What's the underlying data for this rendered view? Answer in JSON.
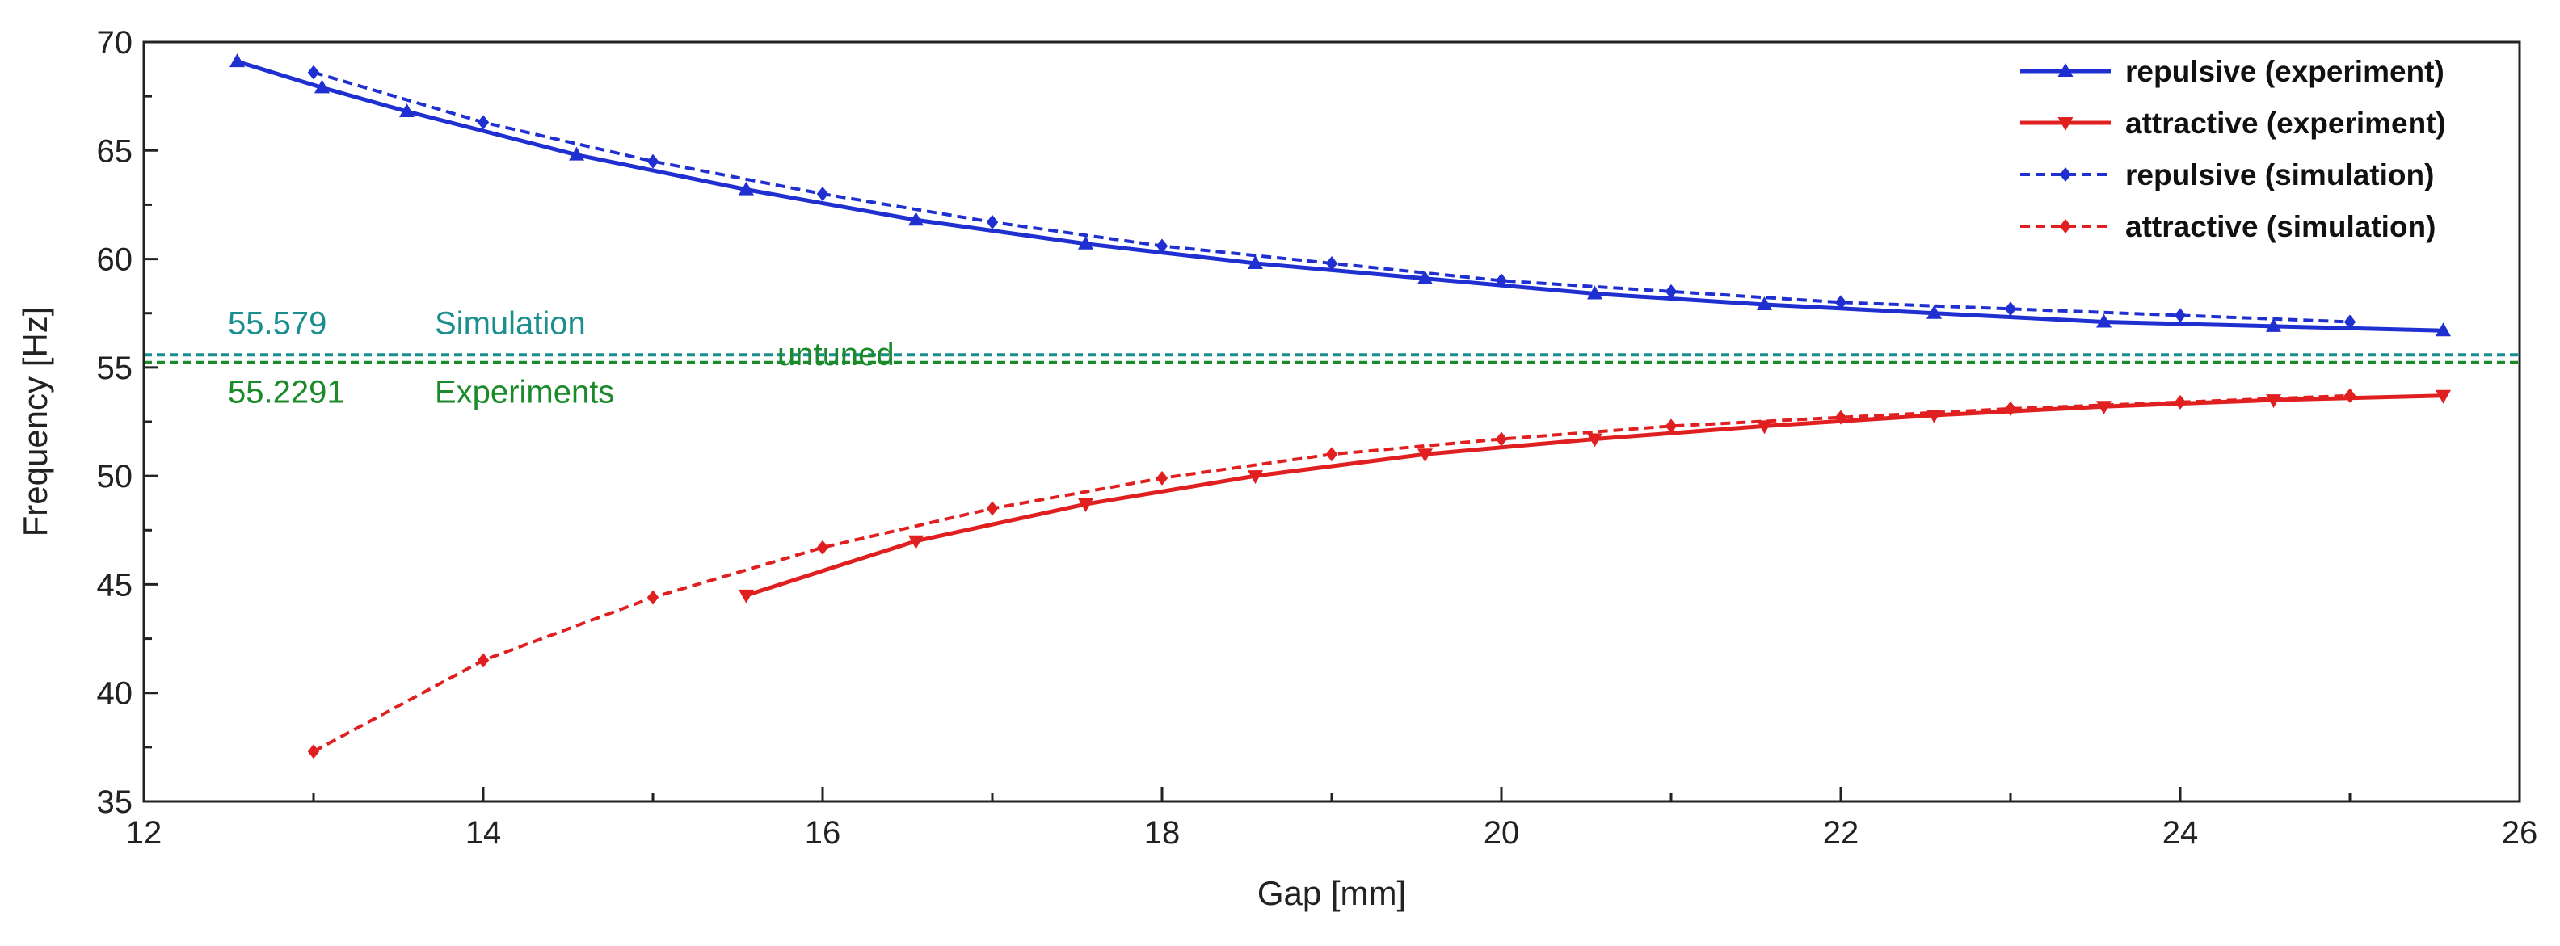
{
  "chart_data": {
    "type": "line",
    "title": "",
    "xlabel": "Gap [mm]",
    "ylabel": "Frequency [Hz]",
    "xlim": [
      12,
      26
    ],
    "ylim": [
      35,
      70
    ],
    "xticks": [
      12,
      14,
      16,
      18,
      20,
      22,
      24,
      26
    ],
    "yticks": [
      35,
      40,
      45,
      50,
      55,
      60,
      65,
      70
    ],
    "grid": false,
    "legend_position": "top-right",
    "series": [
      {
        "name": "repulsive (experiment)",
        "color": "#1f2fd0",
        "line": "solid",
        "marker": "triangle-up",
        "x": [
          12.55,
          13.05,
          13.55,
          14.55,
          15.55,
          16.55,
          17.55,
          18.55,
          19.55,
          20.55,
          21.55,
          22.55,
          23.55,
          24.55,
          25.55
        ],
        "y": [
          69.1,
          67.9,
          66.8,
          64.8,
          63.2,
          61.8,
          60.7,
          59.8,
          59.1,
          58.4,
          57.9,
          57.5,
          57.1,
          56.9,
          56.7
        ]
      },
      {
        "name": "attractive (experiment)",
        "color": "#e02020",
        "line": "solid",
        "marker": "triangle-down",
        "x": [
          15.55,
          16.55,
          17.55,
          18.55,
          19.55,
          20.55,
          21.55,
          22.55,
          23.55,
          24.55,
          25.55
        ],
        "y": [
          44.5,
          47.0,
          48.7,
          50.0,
          51.0,
          51.7,
          52.3,
          52.8,
          53.2,
          53.5,
          53.7
        ]
      },
      {
        "name": "repulsive (simulation)",
        "color": "#1f2fd0",
        "line": "dashed",
        "marker": "diamond",
        "x": [
          13,
          14,
          15,
          16,
          17,
          18,
          19,
          20,
          21,
          22,
          23,
          24,
          25
        ],
        "y": [
          68.6,
          66.3,
          64.5,
          63.0,
          61.7,
          60.6,
          59.8,
          59.0,
          58.5,
          58.0,
          57.7,
          57.4,
          57.1
        ]
      },
      {
        "name": "attractive (simulation)",
        "color": "#e02020",
        "line": "dashed",
        "marker": "diamond",
        "x": [
          13,
          14,
          15,
          16,
          17,
          18,
          19,
          20,
          21,
          22,
          23,
          24,
          25
        ],
        "y": [
          37.3,
          41.5,
          44.4,
          46.7,
          48.5,
          49.9,
          51.0,
          51.7,
          52.3,
          52.7,
          53.1,
          53.4,
          53.7
        ]
      }
    ],
    "reference_lines": [
      {
        "label": "Simulation",
        "value_label": "55.579",
        "y": 55.579,
        "color": "#1b8f8f"
      },
      {
        "label": "Experiments",
        "value_label": "55.2291",
        "y": 55.2291,
        "color": "#1a8a2a"
      }
    ],
    "center_annotation": {
      "text": "untuned",
      "color": "#1a8a2a"
    }
  }
}
